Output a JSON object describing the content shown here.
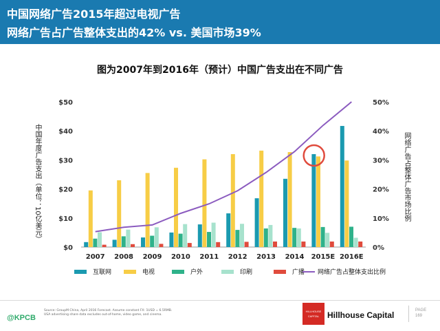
{
  "header": {
    "title_line1": "中国网络广告2015年超过电视广告",
    "title_line2": "网络广告占广告整体支出的42% vs. 美国市场39%"
  },
  "chart_data": {
    "type": "bar",
    "title": "图为2007年到2016年（预计）中国广告支出在不同广告",
    "ylabel_left": "中国年度广告支出（单位：10亿美元）",
    "ylabel_right": "网络广告占整体广告市场比例",
    "ylim": [
      0,
      50
    ],
    "y_ticks": [
      "$0",
      "$10",
      "$20",
      "$30",
      "$40",
      "$50"
    ],
    "y2lim": [
      0,
      50
    ],
    "y2_ticks": [
      "0%",
      "10%",
      "20%",
      "30%",
      "40%",
      "50%"
    ],
    "categories": [
      "2007",
      "2008",
      "2009",
      "2010",
      "2011",
      "2012",
      "2013",
      "2014",
      "2015E",
      "2016E"
    ],
    "series": [
      {
        "name": "互联网",
        "color": "#1b9ab0",
        "values": [
          1.7,
          2.5,
          3.3,
          5.0,
          7.8,
          11.6,
          16.8,
          23.5,
          32.0,
          41.7
        ]
      },
      {
        "name": "电视",
        "color": "#f7cd46",
        "values": [
          19.5,
          23.0,
          25.5,
          27.3,
          30.2,
          32.0,
          33.2,
          32.7,
          31.2,
          29.8
        ]
      },
      {
        "name": "户外",
        "color": "#2fb28a",
        "values": [
          2.9,
          3.7,
          3.9,
          4.6,
          5.2,
          5.9,
          6.4,
          6.6,
          6.9,
          7.0
        ]
      },
      {
        "name": "印刷",
        "color": "#a7e2cd",
        "values": [
          5.1,
          6.0,
          6.8,
          7.9,
          8.4,
          8.0,
          7.6,
          6.4,
          4.9,
          3.2
        ]
      },
      {
        "name": "广播",
        "color": "#e04b3d",
        "values": [
          0.8,
          1.0,
          1.1,
          1.4,
          1.7,
          1.8,
          1.9,
          1.9,
          1.9,
          1.9
        ]
      }
    ],
    "line_series": {
      "name": "网络广告占整体支出比例",
      "color": "#8b5bbf",
      "axis": "right",
      "values": [
        5.3,
        6.8,
        7.6,
        11.6,
        14.9,
        19.4,
        25.7,
        32.9,
        41.9,
        50.0
      ]
    },
    "annotation": {
      "type": "circle",
      "category": "2015E",
      "color": "#e04b3d"
    }
  },
  "footer": {
    "kpcb": "@KPCB",
    "source_line1": "Source: GroupM China, April 2016 Forecast. Assume constant FX: 1USD = 6.5RMB.",
    "source_line2": "USA advertising share data excludes out-of-home, video game, and cinema.",
    "logo_line1": "HILLHOUSE",
    "logo_line2": "CAPITAL",
    "brand": "Hillhouse Capital",
    "page_label": "PAGE",
    "page_number": "169"
  }
}
